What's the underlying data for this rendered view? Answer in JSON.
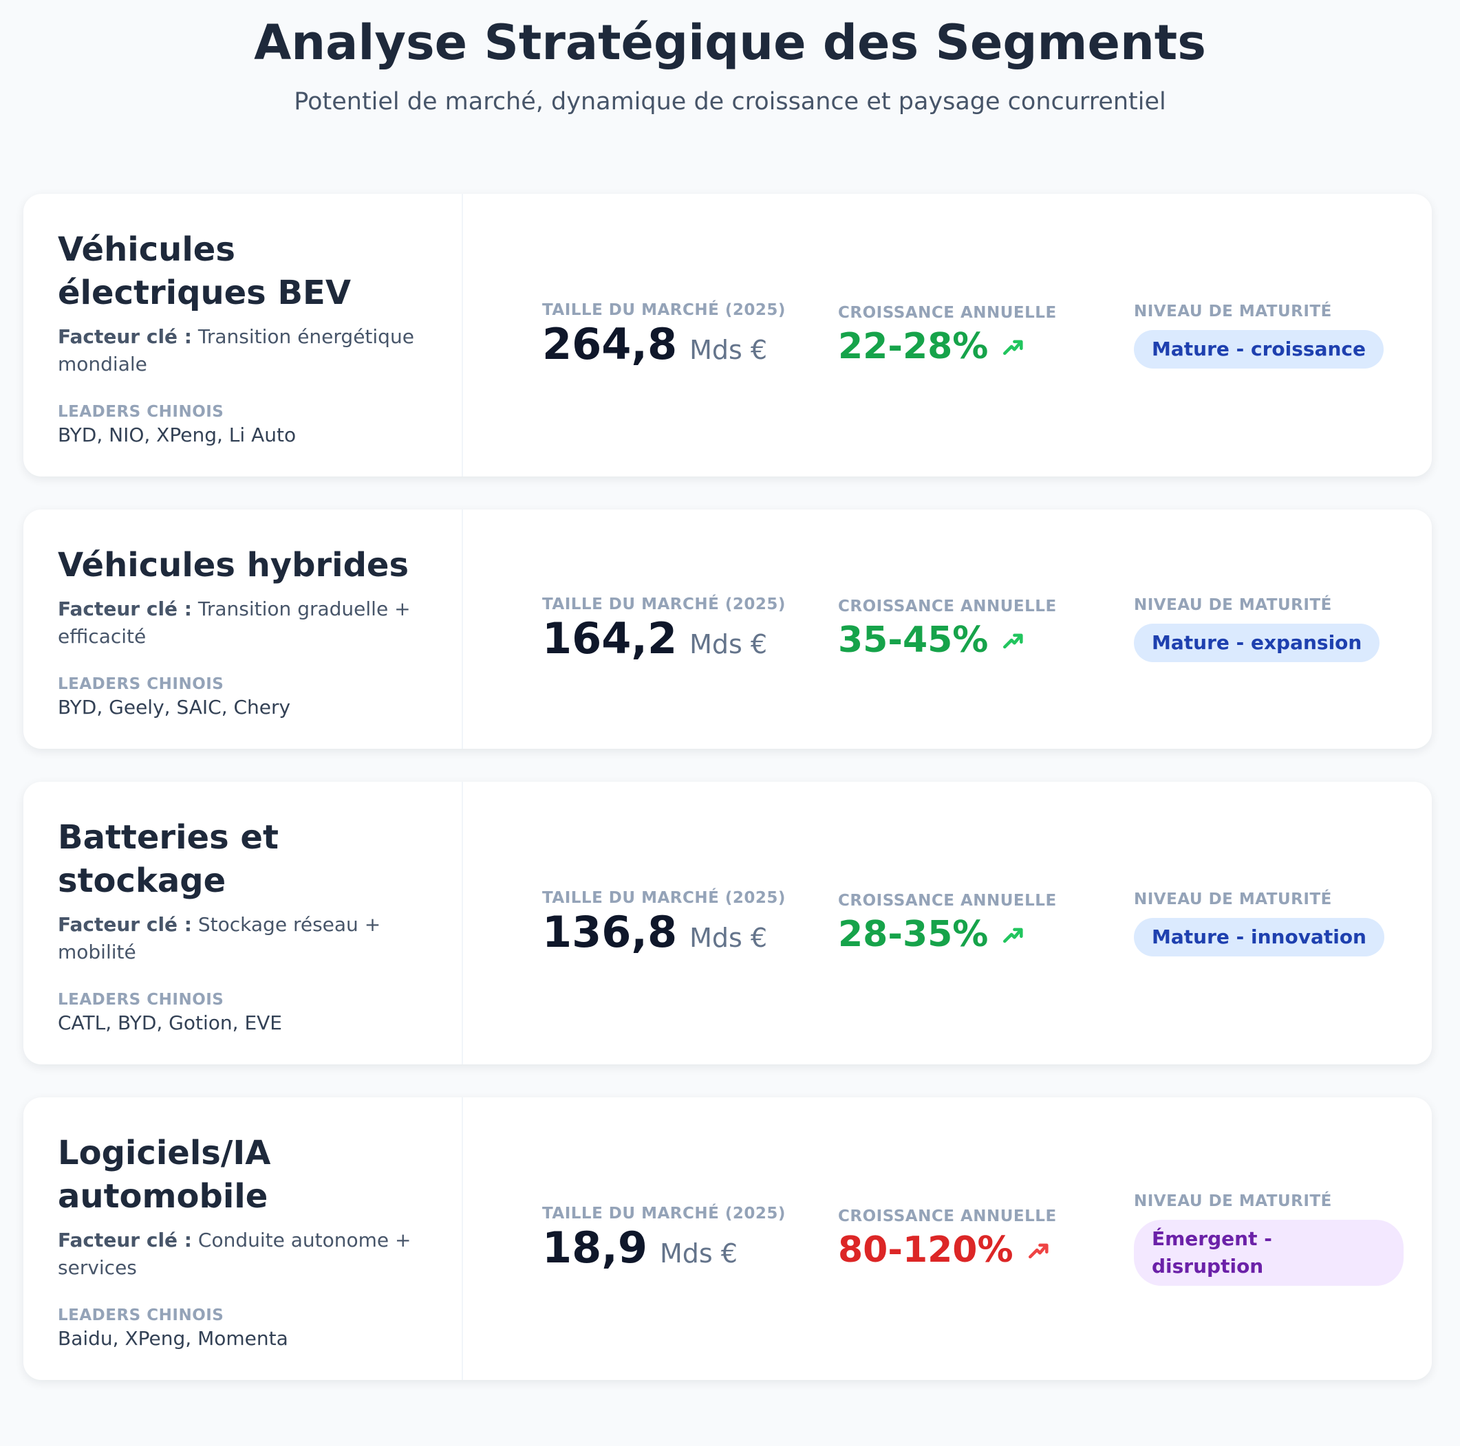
{
  "header": {
    "title": "Analyse Stratégique des Segments",
    "subtitle": "Potentiel de marché, dynamique de croissance et paysage concurrentiel"
  },
  "segments": [
    {
      "name": "Véhicules électriques BEV",
      "factor_label": "Facteur clé :",
      "factor": "Transition énergétique mondiale",
      "leaders_label": "LEADERS CHINOIS",
      "leaders": "BYD, NIO, XPeng, Li Auto",
      "market_label": "TAILLE DU MARCHÉ (2025)",
      "market_value": "264,8",
      "market_unit": "Mds €",
      "growth_label": "CROISSANCE ANNUELLE",
      "growth": "22-28%",
      "growth_color": "#16a34a",
      "maturity_label": "NIVEAU DE MATURITÉ",
      "maturity": "Mature - croissance",
      "badge_bg": "#dbeafe",
      "badge_color": "#1e40af"
    },
    {
      "name": "Véhicules hybrides",
      "factor_label": "Facteur clé :",
      "factor": "Transition graduelle + efficacité",
      "leaders_label": "LEADERS CHINOIS",
      "leaders": "BYD, Geely, SAIC, Chery",
      "market_label": "TAILLE DU MARCHÉ (2025)",
      "market_value": "164,2",
      "market_unit": "Mds €",
      "growth_label": "CROISSANCE ANNUELLE",
      "growth": "35-45%",
      "growth_color": "#16a34a",
      "maturity_label": "NIVEAU DE MATURITÉ",
      "maturity": "Mature - expansion",
      "badge_bg": "#dbeafe",
      "badge_color": "#1e40af"
    },
    {
      "name": "Batteries et stockage",
      "factor_label": "Facteur clé :",
      "factor": "Stockage réseau + mobilité",
      "leaders_label": "LEADERS CHINOIS",
      "leaders": "CATL, BYD, Gotion, EVE",
      "market_label": "TAILLE DU MARCHÉ (2025)",
      "market_value": "136,8",
      "market_unit": "Mds €",
      "growth_label": "CROISSANCE ANNUELLE",
      "growth": "28-35%",
      "growth_color": "#16a34a",
      "maturity_label": "NIVEAU DE MATURITÉ",
      "maturity": "Mature - innovation",
      "badge_bg": "#dbeafe",
      "badge_color": "#1e40af"
    },
    {
      "name": "Logiciels/IA automobile",
      "factor_label": "Facteur clé :",
      "factor": "Conduite autonome + services",
      "leaders_label": "LEADERS CHINOIS",
      "leaders": "Baidu, XPeng, Momenta",
      "market_label": "TAILLE DU MARCHÉ (2025)",
      "market_value": "18,9",
      "market_unit": "Mds €",
      "growth_label": "CROISSANCE ANNUELLE",
      "growth": "80-120%",
      "growth_color": "#dc2626",
      "maturity_label": "NIVEAU DE MATURITÉ",
      "maturity": "Émergent - disruption",
      "badge_bg": "#f3e8ff",
      "badge_color": "#6b21a8"
    }
  ]
}
